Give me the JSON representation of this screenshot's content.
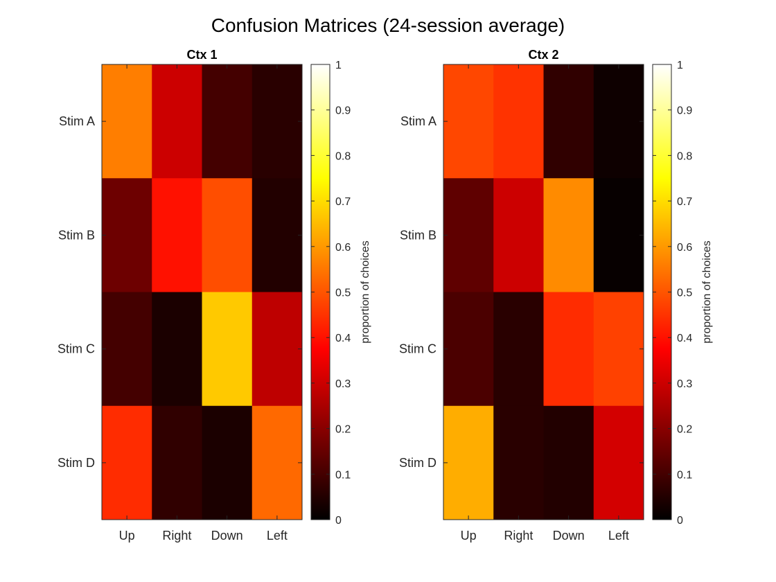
{
  "chart_data": {
    "type": "heatmap",
    "title": "Confusion Matrices (24-session average)",
    "colormap": "hot",
    "clim": [
      0,
      1
    ],
    "colorbar_label": "proportion of choices",
    "colorbar_ticks": [
      "0",
      "0.1",
      "0.2",
      "0.3",
      "0.4",
      "0.5",
      "0.6",
      "0.7",
      "0.8",
      "0.9",
      "1"
    ],
    "panels": [
      {
        "title": "Ctx 1",
        "columns": [
          "Up",
          "Right",
          "Down",
          "Left"
        ],
        "rows": [
          "Stim A",
          "Stim B",
          "Stim C",
          "Stim D"
        ],
        "values": [
          [
            0.56,
            0.3,
            0.1,
            0.06
          ],
          [
            0.16,
            0.4,
            0.49,
            0.05
          ],
          [
            0.1,
            0.04,
            0.67,
            0.28
          ],
          [
            0.44,
            0.07,
            0.04,
            0.53
          ]
        ]
      },
      {
        "title": "Ctx 2",
        "columns": [
          "Up",
          "Right",
          "Down",
          "Left"
        ],
        "rows": [
          "Stim A",
          "Stim B",
          "Stim C",
          "Stim D"
        ],
        "values": [
          [
            0.48,
            0.45,
            0.07,
            0.02
          ],
          [
            0.14,
            0.3,
            0.58,
            0.01
          ],
          [
            0.11,
            0.06,
            0.44,
            0.47
          ],
          [
            0.63,
            0.06,
            0.05,
            0.31
          ]
        ]
      }
    ]
  }
}
